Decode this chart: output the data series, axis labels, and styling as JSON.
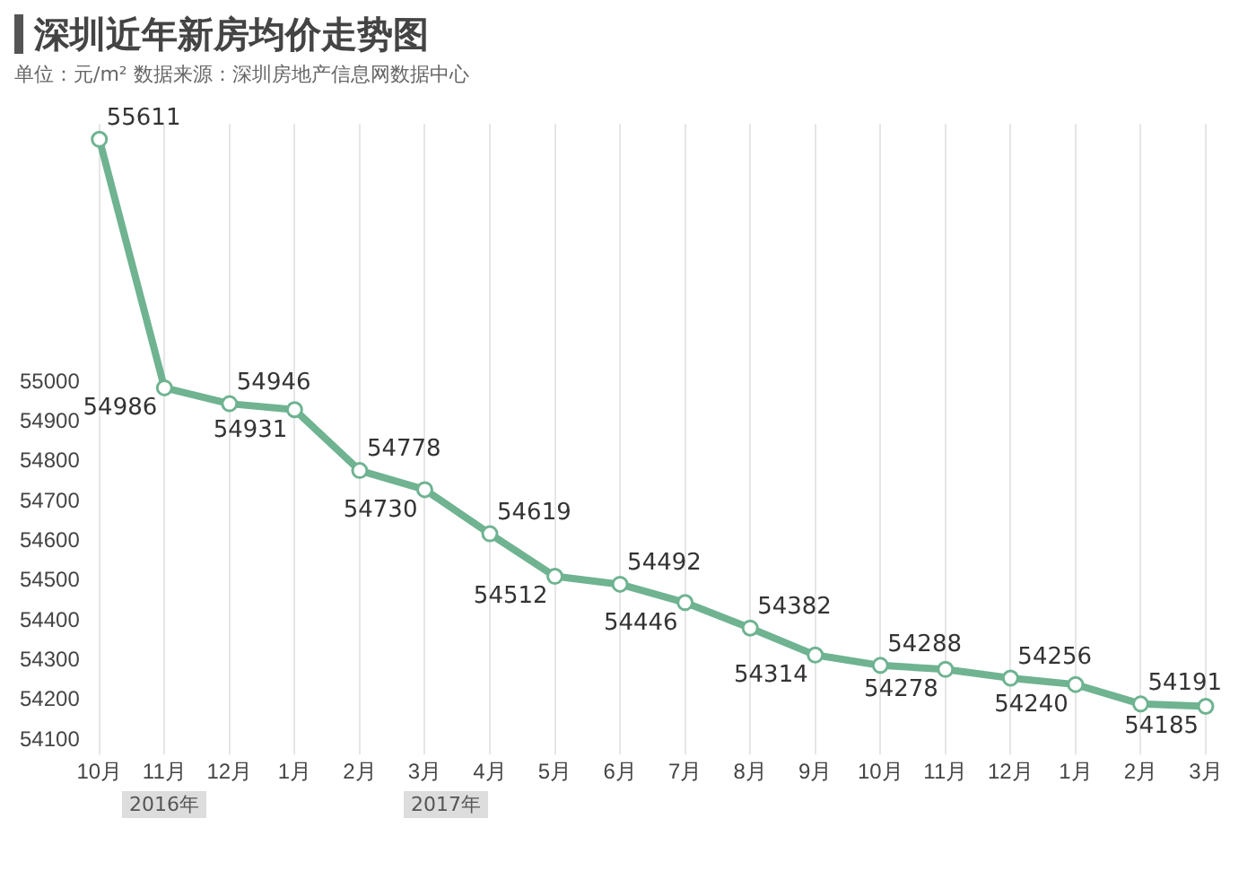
{
  "chart_data": {
    "type": "line",
    "title": "深圳近年新房均价走势图",
    "subtitle": "单位：元/m² 数据来源：深圳房地产信息网数据中心",
    "categories": [
      "10月",
      "11月",
      "12月",
      "1月",
      "2月",
      "3月",
      "4月",
      "5月",
      "6月",
      "7月",
      "8月",
      "9月",
      "10月",
      "11月",
      "12月",
      "1月",
      "2月",
      "3月"
    ],
    "series": [
      {
        "color": "#6fb391",
        "values": [
          55611,
          54986,
          54946,
          54931,
          54778,
          54730,
          54619,
          54512,
          54492,
          54446,
          54382,
          54314,
          54288,
          54278,
          54256,
          54240,
          54191,
          54185
        ]
      }
    ],
    "ylim": [
      54100,
      55650
    ],
    "yticks": [
      54100,
      54200,
      54300,
      54400,
      54500,
      54600,
      54700,
      54800,
      54900,
      55000
    ],
    "grid": "x",
    "legend": false,
    "marker": "circle",
    "line_style": "solid",
    "data_labels": true,
    "annotations": [
      "2016年",
      "2017年"
    ]
  }
}
